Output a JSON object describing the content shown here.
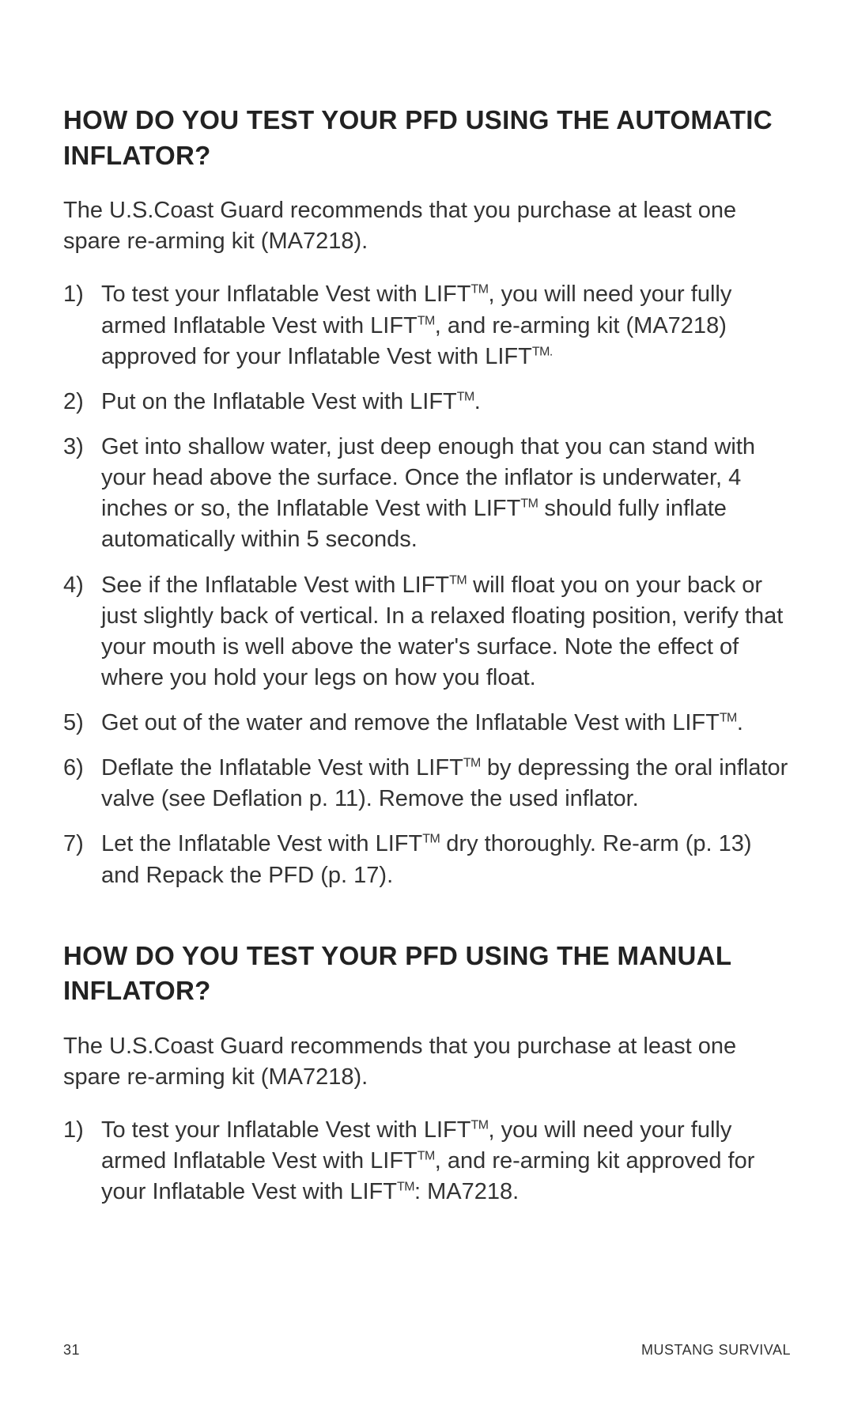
{
  "typography": {
    "heading_fontsize": 33,
    "heading_weight": 700,
    "body_fontsize": 29,
    "body_weight": 400,
    "footer_fontsize": 18,
    "tm_scale": 0.55,
    "color_text": "#333333",
    "color_heading": "#222222",
    "background": "#ffffff"
  },
  "section1": {
    "heading": "HOW DO YOU TEST YOUR PFD USING THE AUTOMATIC INFLATOR?",
    "intro": "The U.S.Coast Guard recommends that you purchase at least one spare re-arming kit (MA7218).",
    "steps": [
      {
        "num": "1)",
        "html": "To test your Inflatable Vest with LIFT<span class=\"tm\">TM</span>, you will need your fully armed Inflatable Vest with LIFT<span class=\"tm\">TM</span>, and re-arming kit (MA7218) approved for your Inflatable Vest with LIFT<span class=\"tm\">TM.</span>"
      },
      {
        "num": "2)",
        "html": "Put on the Inflatable Vest with LIFT<span class=\"tm\">TM</span>."
      },
      {
        "num": "3)",
        "html": "Get into shallow water, just deep enough that you can stand with your head above the surface. Once the inflator is underwater, 4 inches or so, the Inflatable Vest with LIFT<span class=\"tm\">TM</span> should fully inflate automatically within 5 seconds."
      },
      {
        "num": "4)",
        "html": "See if the Inflatable Vest with LIFT<span class=\"tm\">TM</span> will float you on your back or just slightly back of vertical. In a relaxed floating position, verify that your mouth is well above the water's surface. Note the effect of where you hold your legs on how you float."
      },
      {
        "num": "5)",
        "html": "Get out of the water and remove the Inflatable Vest with LIFT<span class=\"tm\">TM</span>."
      },
      {
        "num": "6)",
        "html": "Deflate the Inflatable Vest with LIFT<span class=\"tm\">TM</span> by depressing the oral inflator valve (see Deflation p. 11). Remove the used inflator."
      },
      {
        "num": "7)",
        "html": "Let the Inflatable Vest with LIFT<span class=\"tm\">TM</span> dry thoroughly. Re-arm (p. 13) and Repack the PFD (p. 17)."
      }
    ]
  },
  "section2": {
    "heading": "HOW DO YOU TEST YOUR PFD USING THE MANUAL INFLATOR?",
    "intro": "The U.S.Coast Guard recommends that you purchase at least one spare re-arming kit (MA7218).",
    "steps": [
      {
        "num": "1)",
        "html": "To test your Inflatable Vest with LIFT<span class=\"tm\">TM</span>, you will need your fully armed Inflatable Vest with LIFT<span class=\"tm\">TM</span>, and re-arming kit approved for your Inflatable Vest with LIFT<span class=\"tm\">TM</span>: MA7218."
      }
    ]
  },
  "footer": {
    "page_number": "31",
    "brand": "MUSTANG SURVIVAL"
  }
}
